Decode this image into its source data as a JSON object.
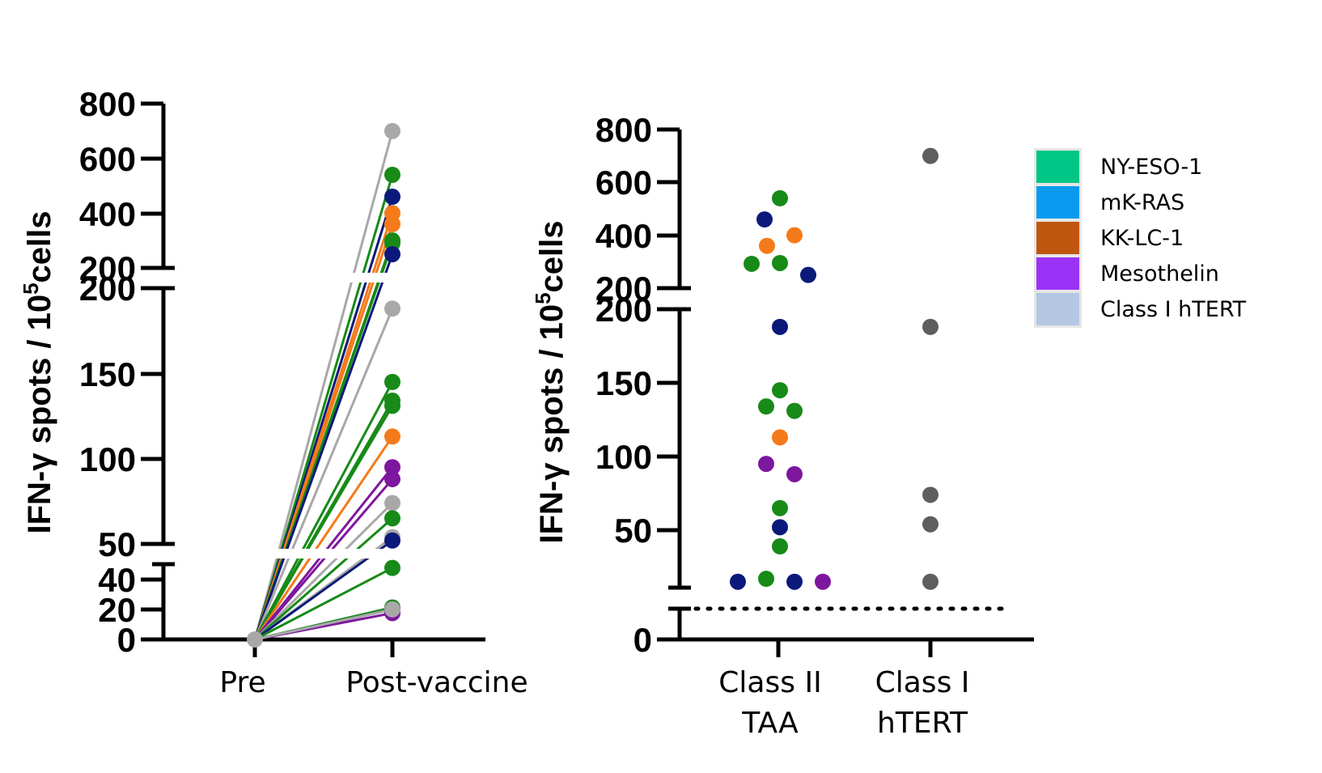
{
  "colors": {
    "NY-ESO-1": "#178a17",
    "mK-RAS": "#0b1a7a",
    "KK-LC-1": "#f57a1a",
    "Mesothelin": "#7d179e",
    "Class I hTERT": "#a8a8a8",
    "hTERT_right": "#5e5e5e",
    "axis": "#000000"
  },
  "legend_colors": {
    "NY-ESO-1": "#00c785",
    "mK-RAS": "#0a9bf0",
    "KK-LC-1": "#c0560e",
    "Mesothelin": "#9a33f5",
    "Class I hTERT": "#b3c7e3"
  },
  "chart_data": [
    {
      "type": "line",
      "chart_kind": "paired before-after line plot",
      "ylabel": "IFN-γ spots / 10",
      "ylabel_exp": "5",
      "ylabel_suffix": "cells",
      "y_axis": "broken",
      "y_segments": [
        [
          0,
          45
        ],
        [
          50,
          200
        ],
        [
          200,
          800
        ]
      ],
      "yticks": [
        "0",
        "20",
        "40",
        "50",
        "100",
        "150",
        "200",
        "200",
        "400",
        "600",
        "800"
      ],
      "categories": [
        "Pre",
        "Post-vaccine"
      ],
      "pairs": [
        {
          "antigen": "Class I hTERT",
          "pre": 0,
          "post": 700
        },
        {
          "antigen": "NY-ESO-1",
          "pre": 0,
          "post": 540
        },
        {
          "antigen": "mK-RAS",
          "pre": 0,
          "post": 460
        },
        {
          "antigen": "KK-LC-1",
          "pre": 0,
          "post": 400
        },
        {
          "antigen": "KK-LC-1",
          "pre": 0,
          "post": 360
        },
        {
          "antigen": "NY-ESO-1",
          "pre": 0,
          "post": 300
        },
        {
          "antigen": "NY-ESO-1",
          "pre": 0,
          "post": 290
        },
        {
          "antigen": "mK-RAS",
          "pre": 0,
          "post": 250
        },
        {
          "antigen": "Class I hTERT",
          "pre": 0,
          "post": 188
        },
        {
          "antigen": "NY-ESO-1",
          "pre": 0,
          "post": 145
        },
        {
          "antigen": "NY-ESO-1",
          "pre": 0,
          "post": 134
        },
        {
          "antigen": "NY-ESO-1",
          "pre": 0,
          "post": 131
        },
        {
          "antigen": "KK-LC-1",
          "pre": 0,
          "post": 113
        },
        {
          "antigen": "Mesothelin",
          "pre": 0,
          "post": 95
        },
        {
          "antigen": "Mesothelin",
          "pre": 0,
          "post": 88
        },
        {
          "antigen": "Class I hTERT",
          "pre": 0,
          "post": 74
        },
        {
          "antigen": "NY-ESO-1",
          "pre": 0,
          "post": 65
        },
        {
          "antigen": "Class I hTERT",
          "pre": 0,
          "post": 54
        },
        {
          "antigen": "mK-RAS",
          "pre": 0,
          "post": 52
        },
        {
          "antigen": "NY-ESO-1",
          "pre": 0,
          "post": 38
        },
        {
          "antigen": "NY-ESO-1",
          "pre": 0,
          "post": 17
        },
        {
          "antigen": "mK-RAS",
          "pre": 0,
          "post": 16
        },
        {
          "antigen": "Mesothelin",
          "pre": 0,
          "post": 14
        },
        {
          "antigen": "Class I hTERT",
          "pre": 0,
          "post": 16
        }
      ]
    },
    {
      "type": "scatter",
      "ylabel": "IFN-γ spots / 10",
      "ylabel_exp": "5",
      "ylabel_suffix": "cells",
      "y_axis": "broken",
      "y_segments": [
        [
          0,
          10
        ],
        [
          25,
          200
        ],
        [
          200,
          800
        ]
      ],
      "yticks": [
        "0",
        "50",
        "100",
        "150",
        "200",
        "200",
        "400",
        "600",
        "800"
      ],
      "threshold_line": "dotted",
      "categories": [
        {
          "line1": "Class II",
          "line2": "TAA"
        },
        {
          "line1": "Class I",
          "line2": "hTERT"
        }
      ],
      "points": [
        {
          "group": 0,
          "antigen": "NY-ESO-1",
          "y": 540,
          "dx": 2
        },
        {
          "group": 0,
          "antigen": "mK-RAS",
          "y": 460,
          "dx": -17
        },
        {
          "group": 0,
          "antigen": "KK-LC-1",
          "y": 400,
          "dx": 20
        },
        {
          "group": 0,
          "antigen": "KK-LC-1",
          "y": 360,
          "dx": -14
        },
        {
          "group": 0,
          "antigen": "NY-ESO-1",
          "y": 292,
          "dx": -33
        },
        {
          "group": 0,
          "antigen": "NY-ESO-1",
          "y": 295,
          "dx": 2
        },
        {
          "group": 0,
          "antigen": "mK-RAS",
          "y": 250,
          "dx": 37
        },
        {
          "group": 0,
          "antigen": "mK-RAS",
          "y": 188,
          "dx": 2
        },
        {
          "group": 0,
          "antigen": "NY-ESO-1",
          "y": 145,
          "dx": 2
        },
        {
          "group": 0,
          "antigen": "NY-ESO-1",
          "y": 134,
          "dx": -15
        },
        {
          "group": 0,
          "antigen": "NY-ESO-1",
          "y": 131,
          "dx": 20
        },
        {
          "group": 0,
          "antigen": "KK-LC-1",
          "y": 113,
          "dx": 2
        },
        {
          "group": 0,
          "antigen": "Mesothelin",
          "y": 95,
          "dx": -15
        },
        {
          "group": 0,
          "antigen": "Mesothelin",
          "y": 88,
          "dx": 20
        },
        {
          "group": 0,
          "antigen": "NY-ESO-1",
          "y": 65,
          "dx": 2
        },
        {
          "group": 0,
          "antigen": "mK-RAS",
          "y": 52,
          "dx": 2
        },
        {
          "group": 0,
          "antigen": "NY-ESO-1",
          "y": 39,
          "dx": 2
        },
        {
          "group": 0,
          "antigen": "NY-ESO-1",
          "y": 17,
          "dx": -15
        },
        {
          "group": 0,
          "antigen": "mK-RAS",
          "y": 15,
          "dx": -50
        },
        {
          "group": 0,
          "antigen": "mK-RAS",
          "y": 15,
          "dx": 20
        },
        {
          "group": 0,
          "antigen": "Mesothelin",
          "y": 15,
          "dx": 55
        },
        {
          "group": 1,
          "antigen": "hTERT_right",
          "y": 700,
          "dx": 0
        },
        {
          "group": 1,
          "antigen": "hTERT_right",
          "y": 188,
          "dx": 0
        },
        {
          "group": 1,
          "antigen": "hTERT_right",
          "y": 74,
          "dx": 0
        },
        {
          "group": 1,
          "antigen": "hTERT_right",
          "y": 54,
          "dx": 0
        },
        {
          "group": 1,
          "antigen": "hTERT_right",
          "y": 15,
          "dx": 0
        }
      ]
    }
  ],
  "legend": [
    "NY-ESO-1",
    "mK-RAS",
    "KK-LC-1",
    "Mesothelin",
    "Class I hTERT"
  ]
}
